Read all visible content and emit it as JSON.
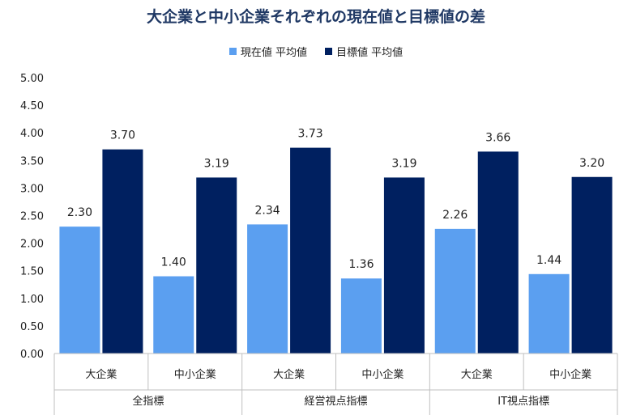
{
  "chart_data": {
    "type": "bar",
    "title": "大企業と中小企業それぞれの現在値と目標値の差",
    "groups": [
      "全指標",
      "経営視点指標",
      "IT視点指標"
    ],
    "categories": [
      "大企業",
      "中小企業",
      "大企業",
      "中小企業",
      "大企業",
      "中小企業"
    ],
    "series": [
      {
        "name": "現在値 平均値",
        "color": "#5b9ff0",
        "values": [
          2.3,
          1.4,
          2.34,
          1.36,
          2.26,
          1.44
        ]
      },
      {
        "name": "目標値 平均値",
        "color": "#002060",
        "values": [
          3.7,
          3.19,
          3.73,
          3.19,
          3.66,
          3.2
        ]
      }
    ],
    "y_ticks": [
      "0.00",
      "0.50",
      "1.00",
      "1.50",
      "2.00",
      "2.50",
      "3.00",
      "3.50",
      "4.00",
      "4.50",
      "5.00"
    ],
    "ylim": [
      0,
      5
    ],
    "legend_position": "top-center",
    "grid": false
  }
}
